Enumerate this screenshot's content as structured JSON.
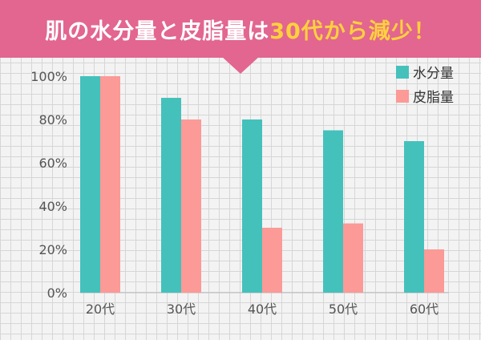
{
  "banner": {
    "title_main": "肌の水分量と皮脂量は",
    "title_highlight": "30代から減少！"
  },
  "colors": {
    "banner_bg": "#e2668f",
    "highlight": "#ffd13d",
    "series_moisture": "#45c1bc",
    "series_sebum": "#fb9a97"
  },
  "chart_data": {
    "type": "bar",
    "categories": [
      "20代",
      "30代",
      "40代",
      "50代",
      "60代"
    ],
    "series": [
      {
        "name": "水分量",
        "color": "#45c1bc",
        "values": [
          100,
          90,
          80,
          75,
          70
        ]
      },
      {
        "name": "皮脂量",
        "color": "#fb9a97",
        "values": [
          100,
          80,
          30,
          32,
          20
        ]
      }
    ],
    "yticks": [
      "0%",
      "20%",
      "40%",
      "60%",
      "80%",
      "100%"
    ],
    "ylim": [
      0,
      100
    ],
    "legend_position": "top-right",
    "grid": true
  }
}
